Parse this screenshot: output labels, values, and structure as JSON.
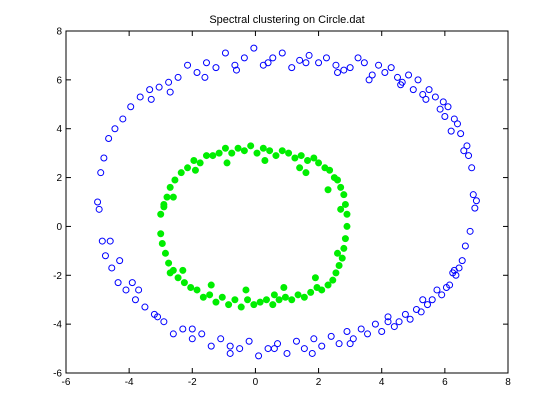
{
  "chart_data": {
    "type": "scatter",
    "title": "Spectral clustering on Circle.dat",
    "xlabel": "",
    "ylabel": "",
    "xlim": [
      -6,
      8
    ],
    "ylim": [
      -6,
      8
    ],
    "xticks": [
      -6,
      -4,
      -2,
      0,
      2,
      4,
      6,
      8
    ],
    "yticks": [
      -6,
      -4,
      -2,
      0,
      2,
      4,
      6,
      8
    ],
    "grid": false,
    "legend": "none",
    "series": [
      {
        "marker": "open-circle",
        "color": "#0000ff",
        "points": [
          [
            7.0,
            1.05
          ],
          [
            6.95,
            0.75
          ],
          [
            6.9,
            1.3
          ],
          [
            6.85,
            2.4
          ],
          [
            6.8,
            -0.2
          ],
          [
            6.75,
            2.9
          ],
          [
            6.7,
            3.3
          ],
          [
            6.65,
            -0.8
          ],
          [
            6.6,
            3.1
          ],
          [
            6.55,
            -1.4
          ],
          [
            6.5,
            3.8
          ],
          [
            6.45,
            -1.7
          ],
          [
            6.4,
            4.2
          ],
          [
            6.35,
            -2.0
          ],
          [
            6.3,
            4.4
          ],
          [
            6.25,
            -1.9
          ],
          [
            6.2,
            3.9
          ],
          [
            6.15,
            -2.4
          ],
          [
            6.1,
            4.9
          ],
          [
            6.05,
            -2.5
          ],
          [
            5.95,
            5.1
          ],
          [
            5.9,
            -2.8
          ],
          [
            5.85,
            4.8
          ],
          [
            5.75,
            -2.6
          ],
          [
            5.7,
            5.3
          ],
          [
            5.6,
            -3.0
          ],
          [
            5.5,
            5.6
          ],
          [
            5.45,
            -3.2
          ],
          [
            5.3,
            5.4
          ],
          [
            5.25,
            -3.5
          ],
          [
            5.15,
            6.0
          ],
          [
            5.1,
            -3.4
          ],
          [
            5.0,
            5.6
          ],
          [
            4.9,
            -3.8
          ],
          [
            4.85,
            6.2
          ],
          [
            4.75,
            -3.6
          ],
          [
            4.65,
            5.9
          ],
          [
            4.55,
            -3.9
          ],
          [
            4.5,
            6.1
          ],
          [
            4.4,
            -4.1
          ],
          [
            4.3,
            6.5
          ],
          [
            4.2,
            -3.7
          ],
          [
            4.1,
            6.3
          ],
          [
            4.0,
            -4.3
          ],
          [
            3.9,
            6.6
          ],
          [
            3.8,
            -4.0
          ],
          [
            3.7,
            6.2
          ],
          [
            3.55,
            -4.4
          ],
          [
            3.45,
            6.7
          ],
          [
            3.35,
            -4.2
          ],
          [
            3.25,
            6.9
          ],
          [
            3.1,
            -4.6
          ],
          [
            3.0,
            6.5
          ],
          [
            2.9,
            -4.3
          ],
          [
            2.8,
            6.4
          ],
          [
            2.65,
            -4.8
          ],
          [
            2.55,
            6.6
          ],
          [
            2.4,
            -4.5
          ],
          [
            2.25,
            6.9
          ],
          [
            2.1,
            -4.9
          ],
          [
            2.0,
            6.7
          ],
          [
            1.85,
            -4.6
          ],
          [
            1.7,
            7.0
          ],
          [
            1.55,
            -5.0
          ],
          [
            1.4,
            6.8
          ],
          [
            1.3,
            -4.7
          ],
          [
            1.15,
            6.5
          ],
          [
            1.0,
            -5.2
          ],
          [
            0.85,
            7.1
          ],
          [
            0.7,
            -4.8
          ],
          [
            0.55,
            6.9
          ],
          [
            0.4,
            -5.0
          ],
          [
            0.25,
            6.6
          ],
          [
            0.1,
            -5.3
          ],
          [
            -0.05,
            7.3
          ],
          [
            -0.2,
            -4.7
          ],
          [
            -0.35,
            6.9
          ],
          [
            -0.5,
            -5.0
          ],
          [
            -0.65,
            6.6
          ],
          [
            -0.8,
            -5.2
          ],
          [
            -0.95,
            7.1
          ],
          [
            -1.1,
            -4.6
          ],
          [
            -1.25,
            6.5
          ],
          [
            -1.4,
            -4.9
          ],
          [
            -1.55,
            6.7
          ],
          [
            -1.7,
            -4.4
          ],
          [
            -1.85,
            6.3
          ],
          [
            -2.0,
            -4.6
          ],
          [
            -2.15,
            6.6
          ],
          [
            -2.3,
            -4.2
          ],
          [
            -2.45,
            6.1
          ],
          [
            -2.6,
            -4.4
          ],
          [
            -2.75,
            5.9
          ],
          [
            -2.9,
            -3.9
          ],
          [
            -3.05,
            5.7
          ],
          [
            -3.2,
            -3.6
          ],
          [
            -3.35,
            5.6
          ],
          [
            -3.5,
            -3.3
          ],
          [
            -3.65,
            5.3
          ],
          [
            -3.8,
            -3.0
          ],
          [
            -3.95,
            4.9
          ],
          [
            -4.1,
            -2.6
          ],
          [
            -4.2,
            4.4
          ],
          [
            -4.35,
            -2.3
          ],
          [
            -4.45,
            4.0
          ],
          [
            -4.55,
            -1.7
          ],
          [
            -4.65,
            3.6
          ],
          [
            -4.75,
            -1.2
          ],
          [
            -4.8,
            2.8
          ],
          [
            -4.85,
            -0.6
          ],
          [
            -4.9,
            2.2
          ],
          [
            -4.95,
            0.7
          ],
          [
            -5.0,
            1.0
          ],
          [
            -4.6,
            -0.6
          ],
          [
            -4.3,
            -1.4
          ],
          [
            -3.9,
            -2.3
          ],
          [
            -3.3,
            5.2
          ],
          [
            -2.7,
            5.5
          ],
          [
            -1.6,
            6.1
          ],
          [
            -0.6,
            6.4
          ],
          [
            0.4,
            6.7
          ],
          [
            1.6,
            6.7
          ],
          [
            2.6,
            6.3
          ],
          [
            3.6,
            6.0
          ],
          [
            4.6,
            5.8
          ],
          [
            5.4,
            5.2
          ],
          [
            6.0,
            4.5
          ],
          [
            6.3,
            -1.8
          ],
          [
            5.3,
            -3.0
          ],
          [
            4.2,
            -3.9
          ],
          [
            3.0,
            -4.8
          ],
          [
            1.8,
            -5.2
          ],
          [
            0.6,
            -5.0
          ],
          [
            -0.8,
            -4.9
          ],
          [
            -2.0,
            -4.2
          ],
          [
            -3.1,
            -3.7
          ],
          [
            -3.7,
            -2.6
          ]
        ]
      },
      {
        "marker": "filled-circle",
        "color": "#00ee00",
        "points": [
          [
            2.9,
            0.0
          ],
          [
            2.9,
            0.5
          ],
          [
            2.85,
            -0.5
          ],
          [
            2.85,
            0.9
          ],
          [
            2.8,
            -0.9
          ],
          [
            2.8,
            1.3
          ],
          [
            2.75,
            -1.3
          ],
          [
            2.7,
            1.6
          ],
          [
            2.65,
            -1.6
          ],
          [
            2.6,
            1.9
          ],
          [
            2.55,
            -1.9
          ],
          [
            2.5,
            2.0
          ],
          [
            2.45,
            -2.2
          ],
          [
            2.35,
            2.3
          ],
          [
            2.3,
            -2.4
          ],
          [
            2.2,
            2.4
          ],
          [
            2.1,
            -2.6
          ],
          [
            2.0,
            2.6
          ],
          [
            1.95,
            -2.5
          ],
          [
            1.85,
            2.8
          ],
          [
            1.75,
            -2.7
          ],
          [
            1.65,
            2.7
          ],
          [
            1.55,
            -2.9
          ],
          [
            1.45,
            2.9
          ],
          [
            1.35,
            -2.8
          ],
          [
            1.25,
            2.8
          ],
          [
            1.15,
            -3.0
          ],
          [
            1.05,
            3.0
          ],
          [
            0.95,
            -2.9
          ],
          [
            0.85,
            3.1
          ],
          [
            0.75,
            -3.0
          ],
          [
            0.65,
            2.9
          ],
          [
            0.55,
            -3.2
          ],
          [
            0.45,
            3.1
          ],
          [
            0.35,
            -3.0
          ],
          [
            0.25,
            3.2
          ],
          [
            0.15,
            -3.1
          ],
          [
            0.05,
            3.0
          ],
          [
            -0.05,
            -3.2
          ],
          [
            -0.15,
            3.3
          ],
          [
            -0.25,
            -3.0
          ],
          [
            -0.35,
            3.1
          ],
          [
            -0.45,
            -3.3
          ],
          [
            -0.55,
            3.2
          ],
          [
            -0.65,
            -3.0
          ],
          [
            -0.75,
            3.0
          ],
          [
            -0.85,
            -3.2
          ],
          [
            -0.95,
            3.2
          ],
          [
            -1.05,
            -2.9
          ],
          [
            -1.15,
            3.0
          ],
          [
            -1.25,
            -3.1
          ],
          [
            -1.35,
            2.9
          ],
          [
            -1.45,
            -2.8
          ],
          [
            -1.55,
            2.9
          ],
          [
            -1.65,
            -2.9
          ],
          [
            -1.75,
            2.6
          ],
          [
            -1.85,
            -2.6
          ],
          [
            -1.95,
            2.7
          ],
          [
            -2.05,
            -2.5
          ],
          [
            -2.15,
            2.4
          ],
          [
            -2.25,
            -2.3
          ],
          [
            -2.35,
            2.2
          ],
          [
            -2.45,
            -2.1
          ],
          [
            -2.55,
            1.9
          ],
          [
            -2.6,
            -1.8
          ],
          [
            -2.7,
            1.6
          ],
          [
            -2.75,
            -1.5
          ],
          [
            -2.8,
            1.2
          ],
          [
            -2.85,
            -1.1
          ],
          [
            -2.9,
            0.9
          ],
          [
            -2.95,
            -0.7
          ],
          [
            -3.0,
            0.5
          ],
          [
            -3.0,
            -0.3
          ],
          [
            -2.7,
            -1.9
          ],
          [
            -2.9,
            0.8
          ],
          [
            2.6,
            -1.1
          ],
          [
            2.3,
            1.5
          ],
          [
            1.9,
            -2.1
          ],
          [
            1.4,
            2.4
          ],
          [
            0.9,
            -2.5
          ],
          [
            0.3,
            2.7
          ],
          [
            -0.3,
            -2.6
          ],
          [
            -0.9,
            2.6
          ],
          [
            -1.4,
            -2.4
          ],
          [
            -1.9,
            2.3
          ],
          [
            -2.3,
            -1.8
          ],
          [
            -2.6,
            1.2
          ],
          [
            0.6,
            -2.8
          ],
          [
            1.6,
            2.2
          ],
          [
            2.7,
            0.7
          ]
        ]
      }
    ]
  }
}
